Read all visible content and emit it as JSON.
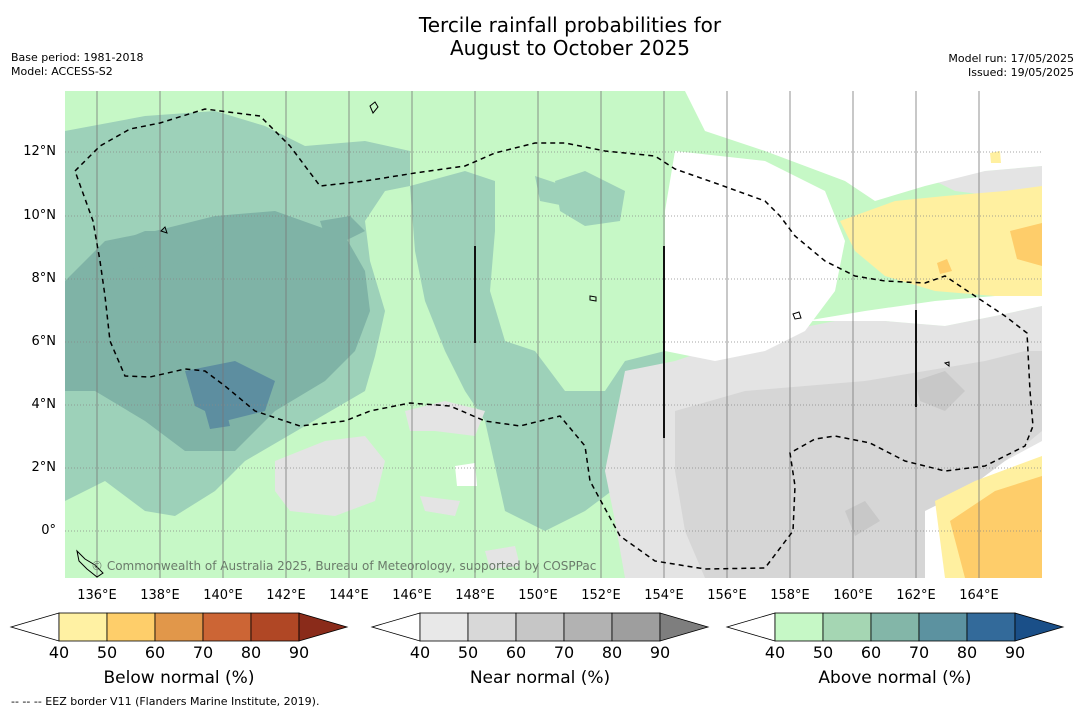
{
  "title_line1": "Tercile rainfall probabilities for",
  "title_line2": "August to October 2025",
  "meta_left": {
    "line1": "Base period: 1981-2018",
    "line2": "Model: ACCESS-S2"
  },
  "meta_right": {
    "line1": "Model run: 17/05/2025",
    "line2": "Issued: 19/05/2025"
  },
  "copyright": "© Commonwealth of Australia 2025, Bureau of Meteorology, supported by COSPPac",
  "x_ticks": [
    "136°E",
    "138°E",
    "140°E",
    "142°E",
    "144°E",
    "146°E",
    "148°E",
    "150°E",
    "152°E",
    "154°E",
    "156°E",
    "158°E",
    "160°E",
    "162°E",
    "164°E"
  ],
  "y_ticks": [
    "12°N",
    "10°N",
    "8°N",
    "6°N",
    "4°N",
    "2°N",
    "0°"
  ],
  "colorbars": [
    {
      "label": "Below normal (%)",
      "ticks": [
        "40",
        "50",
        "60",
        "70",
        "80",
        "90"
      ],
      "colors": [
        "#ffffff",
        "#fff1a3",
        "#fece6a",
        "#e1974a",
        "#cc6535",
        "#b04725",
        "#8a2b1a"
      ]
    },
    {
      "label": "Near normal (%)",
      "ticks": [
        "40",
        "50",
        "60",
        "70",
        "80",
        "90"
      ],
      "colors": [
        "#ffffff",
        "#e8e8e8",
        "#d8d8d8",
        "#c6c6c6",
        "#b2b2b2",
        "#9e9e9e",
        "#7e7e7e"
      ]
    },
    {
      "label": "Above normal (%)",
      "ticks": [
        "40",
        "50",
        "60",
        "70",
        "80",
        "90"
      ],
      "colors": [
        "#ffffff",
        "#c6f8c6",
        "#a5d6b3",
        "#83b6a8",
        "#5c92a0",
        "#336a9a",
        "#1a4f88"
      ]
    }
  ],
  "footnote": "--  --  -- EEZ border V11 (Flanders Marine Institute, 2019)."
}
